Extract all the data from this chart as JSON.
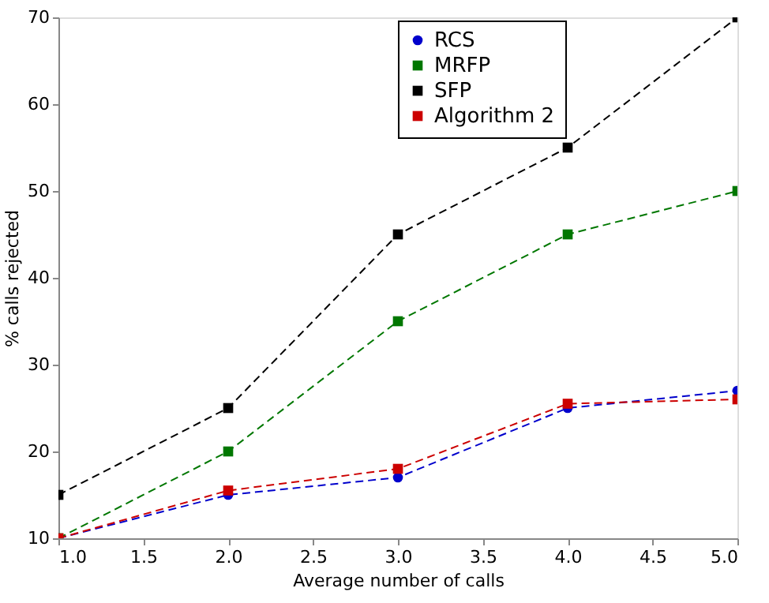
{
  "chart_data": {
    "type": "line",
    "xlabel": "Average number of calls",
    "ylabel": "% calls rejected",
    "x": [
      1,
      2,
      3,
      4,
      5
    ],
    "series": [
      {
        "name": "RCS",
        "color": "#0000cc",
        "marker": "circle",
        "values": [
          10,
          15,
          17,
          25,
          27
        ]
      },
      {
        "name": "MRFP",
        "color": "#007700",
        "marker": "square",
        "values": [
          10,
          20,
          35,
          45,
          50
        ]
      },
      {
        "name": "SFP",
        "color": "#000000",
        "marker": "square",
        "values": [
          15,
          25,
          45,
          55,
          70
        ]
      },
      {
        "name": "Algorithm 2",
        "color": "#cc0000",
        "marker": "square",
        "values": [
          10,
          15.5,
          18,
          25.5,
          26
        ]
      }
    ],
    "xlim": [
      1,
      5
    ],
    "xticks": [
      {
        "value": 1,
        "label": "1.0"
      },
      {
        "value": 1.5,
        "label": "1.5"
      },
      {
        "value": 2,
        "label": "2.0"
      },
      {
        "value": 2.5,
        "label": "2.5"
      },
      {
        "value": 3,
        "label": "3.0"
      },
      {
        "value": 3.5,
        "label": "3.5"
      },
      {
        "value": 4,
        "label": "4.0"
      },
      {
        "value": 4.5,
        "label": "4.5"
      },
      {
        "value": 5,
        "label": "5.0"
      }
    ],
    "ylim": [
      10,
      70
    ],
    "yticks": [
      10,
      20,
      30,
      40,
      50,
      60,
      70
    ],
    "grid": false,
    "legend": "top right",
    "line_style": "dashed"
  }
}
